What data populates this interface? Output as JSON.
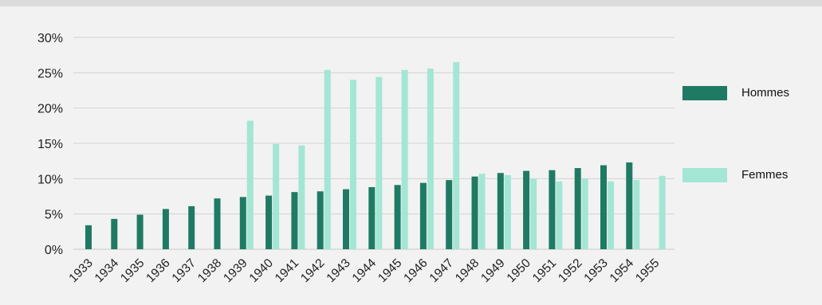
{
  "colors": {
    "hommes": "#1f7a63",
    "femmes": "#a3e6d4",
    "grid": "#d3d3d3",
    "axis": "#c8c8c8"
  },
  "chart_data": {
    "type": "bar",
    "title": "",
    "xlabel": "",
    "ylabel": "",
    "ylim": [
      0,
      30
    ],
    "yticks": [
      "0%",
      "5%",
      "10%",
      "15%",
      "20%",
      "25%",
      "30%"
    ],
    "legend_position": "right",
    "categories": [
      "1933",
      "1934",
      "1935",
      "1936",
      "1937",
      "1938",
      "1939",
      "1940",
      "1941",
      "1942",
      "1943",
      "1944",
      "1945",
      "1946",
      "1947",
      "1948",
      "1949",
      "1950",
      "1951",
      "1952",
      "1953",
      "1954",
      "1955"
    ],
    "series": [
      {
        "name": "Hommes",
        "values": [
          3.4,
          4.3,
          4.9,
          5.7,
          6.1,
          7.2,
          7.4,
          7.6,
          8.1,
          8.2,
          8.5,
          8.8,
          9.1,
          9.4,
          9.8,
          10.3,
          10.8,
          11.1,
          11.2,
          11.5,
          11.9,
          12.3,
          null
        ]
      },
      {
        "name": "Femmes",
        "values": [
          null,
          null,
          null,
          null,
          null,
          null,
          18.2,
          14.9,
          14.7,
          25.4,
          24.0,
          24.4,
          25.4,
          25.6,
          26.5,
          10.7,
          10.5,
          10.0,
          9.6,
          10.0,
          9.6,
          9.8,
          10.4
        ]
      }
    ]
  }
}
